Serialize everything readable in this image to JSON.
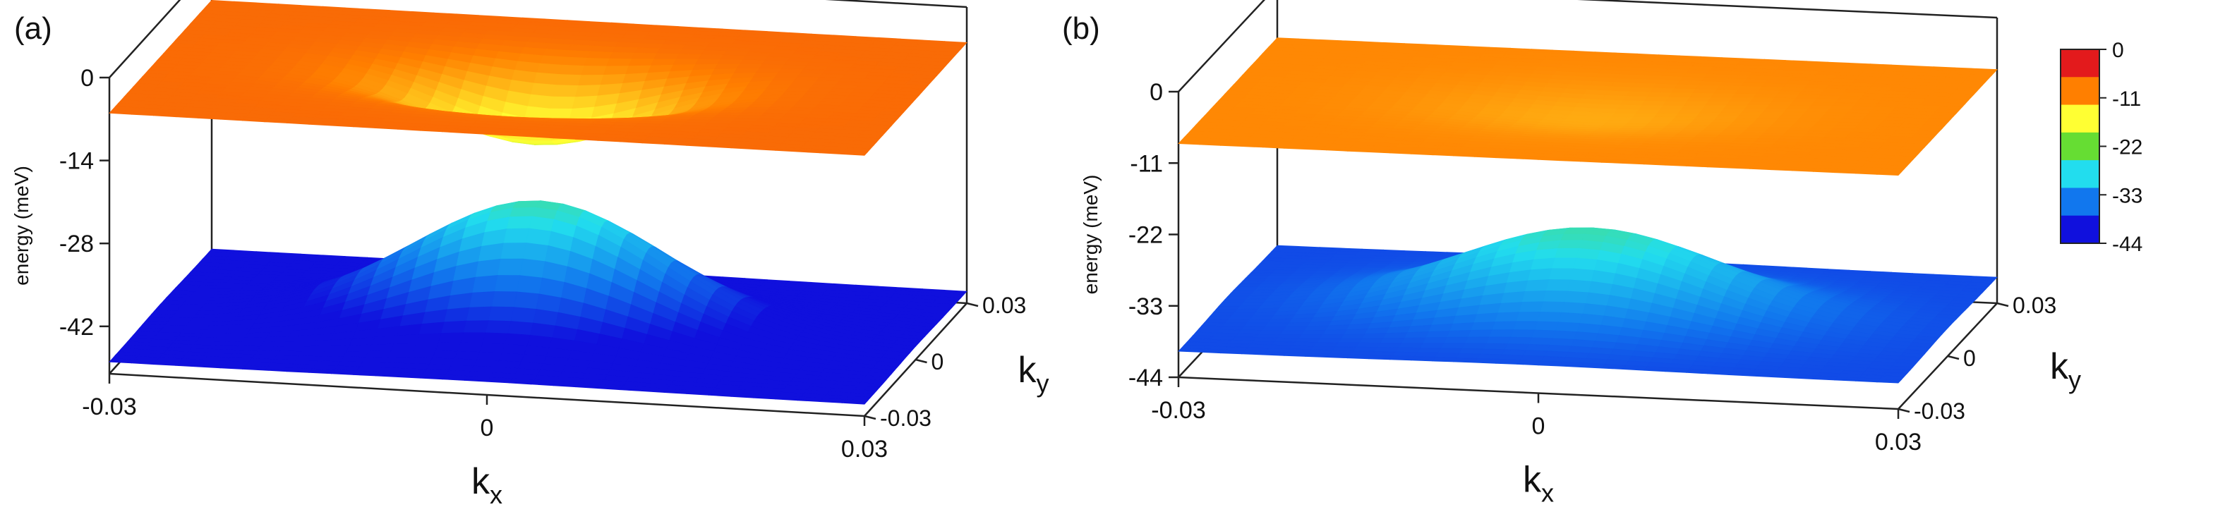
{
  "chart_data": [
    {
      "type": "surface3d",
      "panel_label": "(a)",
      "zlabel": "energy (meV)",
      "xlabel_base": "k",
      "xlabel_sub": "x",
      "ylabel_base": "k",
      "ylabel_sub": "y",
      "x_ticks": [
        -0.03,
        0,
        0.03
      ],
      "x_tick_labels": [
        "-0.03",
        "0",
        "0.03"
      ],
      "y_ticks": [
        -0.03,
        0,
        0.03
      ],
      "y_tick_labels": [
        "-0.03",
        "0",
        "0.03"
      ],
      "z_ticks": [
        0,
        -14,
        -28,
        -42
      ],
      "z_tick_labels": [
        "0",
        "-14",
        "-28",
        "-42"
      ],
      "xlim": [
        -0.03,
        0.03
      ],
      "ylim": [
        -0.03,
        0.03
      ],
      "zlim": [
        -50,
        0
      ],
      "surfaces": [
        {
          "base": -6,
          "peak": -17,
          "width": 0.008
        },
        {
          "base": -48,
          "peak": -27,
          "width": 0.01
        }
      ]
    },
    {
      "type": "surface3d",
      "panel_label": "(b)",
      "zlabel": "energy (meV)",
      "xlabel_base": "k",
      "xlabel_sub": "x",
      "ylabel_base": "k",
      "ylabel_sub": "y",
      "x_ticks": [
        -0.03,
        0,
        0.03
      ],
      "x_tick_labels": [
        "-0.03",
        "0",
        "0.03"
      ],
      "y_ticks": [
        -0.03,
        0,
        0.03
      ],
      "y_tick_labels": [
        "-0.03",
        "0",
        "0.03"
      ],
      "z_ticks": [
        0,
        -11,
        -22,
        -33,
        -44
      ],
      "z_tick_labels": [
        "0",
        "-11",
        "-22",
        "-33",
        "-44"
      ],
      "xlim": [
        -0.03,
        0.03
      ],
      "ylim": [
        -0.03,
        0.03
      ],
      "zlim": [
        -44,
        0
      ],
      "surfaces": [
        {
          "base": -8,
          "peak": -10,
          "width": 0.01
        },
        {
          "base": -40,
          "peak": -27,
          "width": 0.011
        }
      ]
    }
  ],
  "colorbar": {
    "ticks": [
      0,
      -11,
      -22,
      -33,
      -44
    ],
    "tick_labels": [
      "0",
      "-11",
      "-22",
      "-33",
      "-44"
    ],
    "range": [
      -44,
      0
    ],
    "colors": [
      "#e31a1c",
      "#ff7f00",
      "#ffff33",
      "#66dd33",
      "#22ddee",
      "#1177ee",
      "#1010dd"
    ]
  }
}
